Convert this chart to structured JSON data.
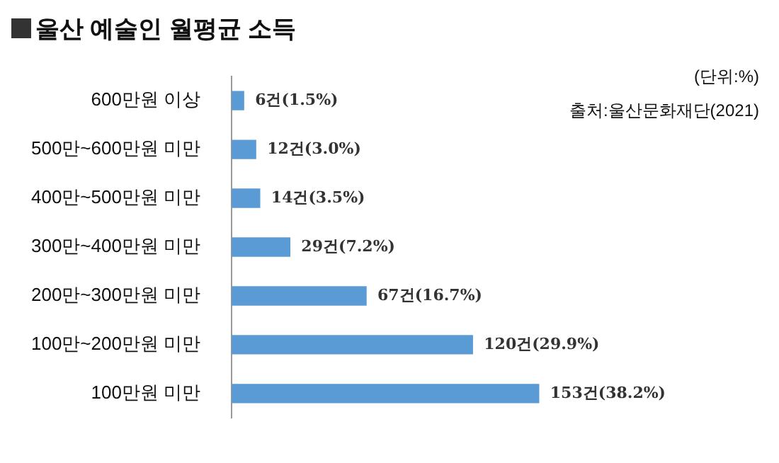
{
  "chart_data": {
    "type": "bar",
    "orientation": "horizontal",
    "title": "울산 예술인 월평균 소득",
    "annotations": [
      "(단위:%)",
      "출처:울산문화재단(2021)"
    ],
    "categories": [
      "600만원 이상",
      "500만~600만원 미만",
      "400만~500만원 미만",
      "300만~400만원 미만",
      "200만~300만원 미만",
      "100만~200만원 미만",
      "100만원 미만"
    ],
    "values": [
      6,
      12,
      14,
      29,
      67,
      120,
      153
    ],
    "value_labels": [
      "6건(1.5%)",
      "12건(3.0%)",
      "14건(3.5%)",
      "29건(7.2%)",
      "67건(16.7%)",
      "120건(29.9%)",
      "153건(38.2%)"
    ],
    "color": "#5b9bd5"
  }
}
